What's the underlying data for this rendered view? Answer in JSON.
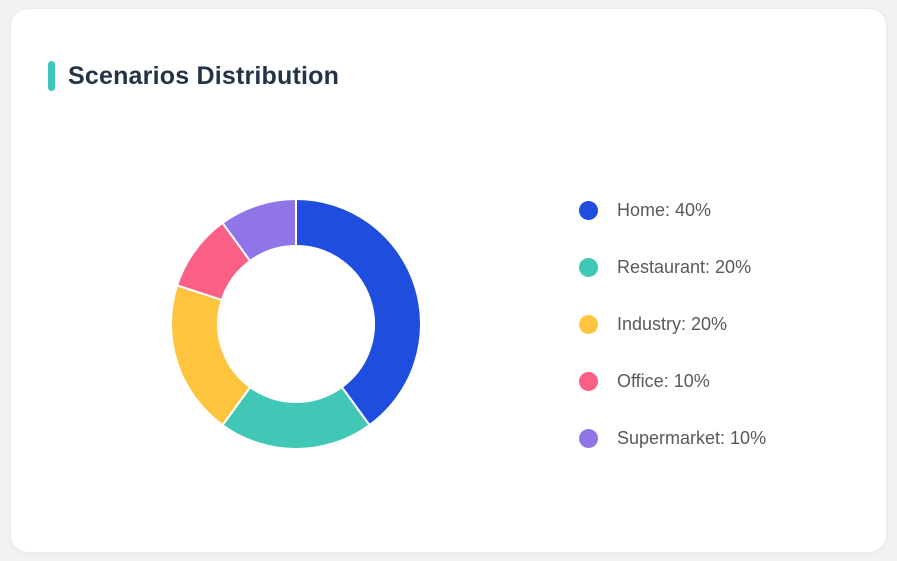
{
  "page": {
    "background_color": "#f1f2f4",
    "card_background_color": "#ffffff"
  },
  "card": {
    "title": "Scenarios Distribution",
    "accent_color": "#3ec5bf",
    "title_color": "#243347"
  },
  "chart_data": {
    "type": "pie",
    "subtype": "donut",
    "title": "Scenarios Distribution",
    "categories": [
      "Home",
      "Restaurant",
      "Industry",
      "Office",
      "Supermarket"
    ],
    "values": [
      40,
      20,
      20,
      10,
      10
    ],
    "unit": "%",
    "colors": [
      "#1f4ede",
      "#40c7b5",
      "#ffc43d",
      "#fa6086",
      "#8f75e8"
    ],
    "legend_labels": [
      "Home: 40%",
      "Restaurant: 20%",
      "Industry: 20%",
      "Office: 10%",
      "Supermarket: 10%"
    ],
    "legend_position": "right",
    "legend_text_color": "#595959",
    "start_angle_deg": 0,
    "clockwise": true,
    "inner_radius_ratio": 0.62,
    "slice_border_color": "#ffffff",
    "slice_border_width": 2
  }
}
